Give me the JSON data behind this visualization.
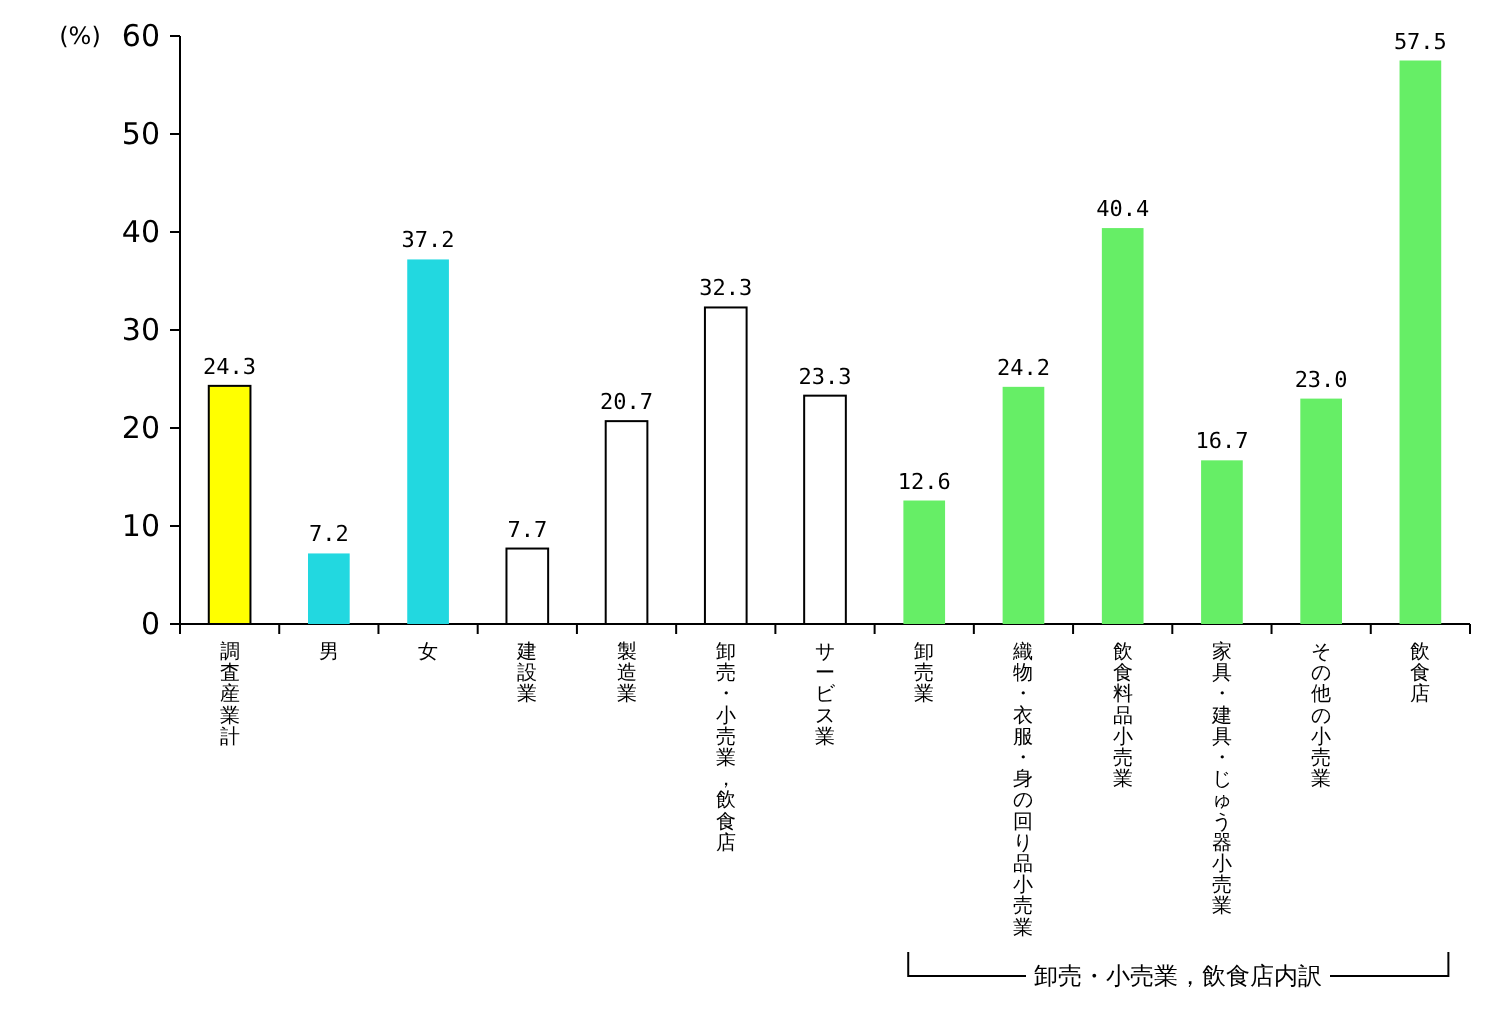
{
  "chart_data": {
    "type": "bar",
    "ylabel": "(%)",
    "categories": [
      "調査産業計",
      "男",
      "女",
      "建設業",
      "製造業",
      "卸売・小売業，飲食店",
      "サービス業",
      "卸売業",
      "織物・衣服・身の回り品小売業",
      "飲食料品小売業",
      "家具・建具・じゅう器小売業",
      "その他の小売業",
      "飲食店"
    ],
    "values": [
      24.3,
      7.2,
      37.2,
      7.7,
      20.7,
      32.3,
      23.3,
      12.6,
      24.2,
      40.4,
      16.7,
      23.0,
      57.5
    ],
    "colors": [
      "#ffff00",
      "#22d8e0",
      "#22d8e0",
      "#ffffff",
      "#ffffff",
      "#ffffff",
      "#ffffff",
      "#66ee66",
      "#66ee66",
      "#66ee66",
      "#66ee66",
      "#66ee66",
      "#66ee66"
    ],
    "ylim": [
      0,
      60
    ],
    "yticks": [
      0,
      10,
      20,
      30,
      40,
      50,
      60
    ],
    "value_labels": [
      "24.3",
      "7.2",
      "37.2",
      "7.7",
      "20.7",
      "32.3",
      "23.3",
      "12.6",
      "24.2",
      "40.4",
      "16.7",
      "23.0",
      "57.5"
    ],
    "annotations": [
      "卸売・小売業，飲食店内訳"
    ]
  }
}
